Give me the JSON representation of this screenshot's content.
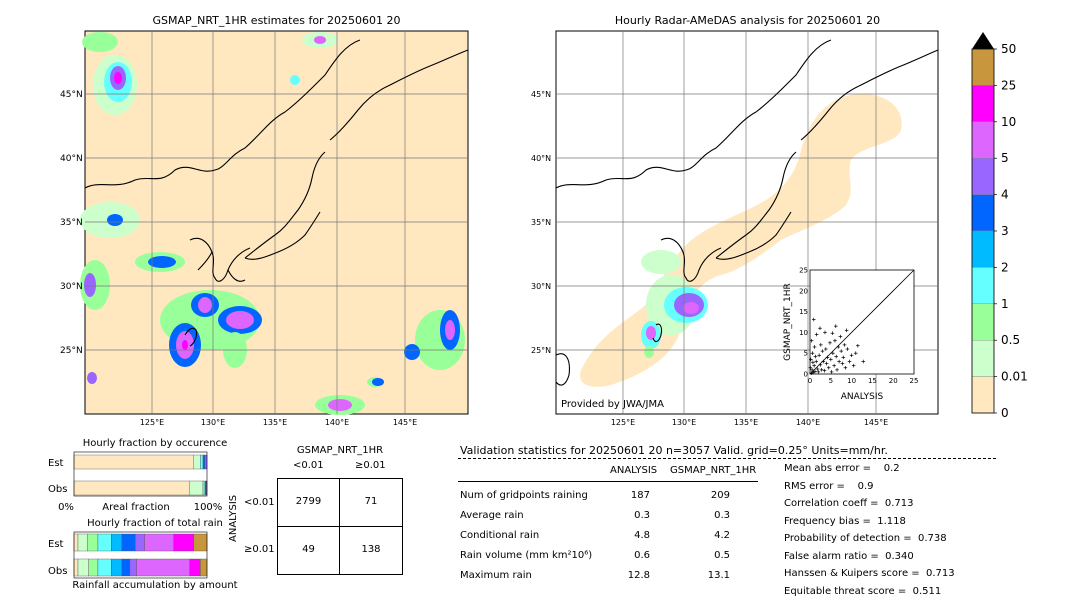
{
  "left_map": {
    "title": "GSMAP_NRT_1HR estimates for 20250601 20",
    "lat_labels": [
      "45°N",
      "40°N",
      "35°N",
      "30°N",
      "25°N"
    ],
    "lon_labels": [
      "125°E",
      "130°E",
      "135°E",
      "140°E",
      "145°E"
    ]
  },
  "right_map": {
    "title": "Hourly Radar-AMeDAS analysis for 20250601 20",
    "lat_labels": [
      "45°N",
      "40°N",
      "35°N",
      "30°N",
      "25°N"
    ],
    "lon_labels": [
      "125°E",
      "130°E",
      "135°E",
      "140°E",
      "145°E"
    ],
    "credit": "Provided by JWA/JMA"
  },
  "colorbar": {
    "labels": [
      "50",
      "25",
      "10",
      "5",
      "4",
      "3",
      "2",
      "1",
      "0.5",
      "0.01",
      "0"
    ],
    "colors": [
      "#c8963c",
      "#ff00ff",
      "#dd66ff",
      "#9966ff",
      "#0066ff",
      "#00bbff",
      "#66ffff",
      "#99ff99",
      "#ccffcc",
      "#ffe8c0"
    ]
  },
  "scatter": {
    "ylabel": "GSMAP_NRT_1HR",
    "xlabel": "ANALYSIS",
    "ticks": [
      "0",
      "5",
      "10",
      "15",
      "20",
      "25"
    ]
  },
  "occurrence": {
    "title": "Hourly fraction by occurence",
    "rows": [
      "Est",
      "Obs"
    ],
    "axis": [
      "0%",
      "Areal fraction",
      "100%"
    ]
  },
  "total_rain": {
    "title": "Hourly fraction of total rain",
    "rows": [
      "Est",
      "Obs"
    ],
    "footer": "Rainfall accumulation by amount"
  },
  "contingency": {
    "title": "GSMAP_NRT_1HR",
    "col_labels": [
      "<0.01",
      "≥0.01"
    ],
    "row_axis": "ANALYSIS",
    "row_labels": [
      "<0.01",
      "≥0.01"
    ],
    "cells": [
      [
        "2799",
        "71"
      ],
      [
        "49",
        "138"
      ]
    ]
  },
  "validation": {
    "header": "Validation statistics for 20250601 20  n=3057 Valid. grid=0.25° Units=mm/hr.",
    "col_analysis": "ANALYSIS",
    "col_gsmap": "GSMAP_NRT_1HR",
    "rows": [
      {
        "label": "Num of gridpoints raining",
        "analysis": "187",
        "gsmap": "209"
      },
      {
        "label": "Average rain",
        "analysis": "0.3",
        "gsmap": "0.3"
      },
      {
        "label": "Conditional rain",
        "analysis": "4.8",
        "gsmap": "4.2"
      },
      {
        "label": "Rain volume (mm km²10⁶)",
        "analysis": "0.6",
        "gsmap": "0.5"
      },
      {
        "label": "Maximum rain",
        "analysis": "12.8",
        "gsmap": "13.1"
      }
    ],
    "scores": [
      "Mean abs error =    0.2",
      "RMS error =    0.9",
      "Correlation coeff =  0.713",
      "Frequency bias =  1.118",
      "Probability of detection =  0.738",
      "False alarm ratio =  0.340",
      "Hanssen & Kuipers score =  0.713",
      "Equitable threat score =  0.511"
    ]
  },
  "chart_data": [
    {
      "type": "scatter",
      "xlabel": "ANALYSIS",
      "ylabel": "GSMAP_NRT_1HR",
      "xlim": [
        0,
        25
      ],
      "ylim": [
        0,
        25
      ],
      "points": [
        [
          0.3,
          0.2
        ],
        [
          0.5,
          1.0
        ],
        [
          0.8,
          0.4
        ],
        [
          1.0,
          2.0
        ],
        [
          1.2,
          0.6
        ],
        [
          1.5,
          3.0
        ],
        [
          1.8,
          1.2
        ],
        [
          2.0,
          0.5
        ],
        [
          2.2,
          4.5
        ],
        [
          2.5,
          2.2
        ],
        [
          2.8,
          1.0
        ],
        [
          3.0,
          5.5
        ],
        [
          3.2,
          3.0
        ],
        [
          3.5,
          0.8
        ],
        [
          3.8,
          6.0
        ],
        [
          4.0,
          2.5
        ],
        [
          4.2,
          4.0
        ],
        [
          4.5,
          1.5
        ],
        [
          4.8,
          7.5
        ],
        [
          5.0,
          3.5
        ],
        [
          5.2,
          0.5
        ],
        [
          5.5,
          5.0
        ],
        [
          5.8,
          2.0
        ],
        [
          6.0,
          8.0
        ],
        [
          6.3,
          4.2
        ],
        [
          6.5,
          1.0
        ],
        [
          6.8,
          6.5
        ],
        [
          7.0,
          3.0
        ],
        [
          7.3,
          9.0
        ],
        [
          7.5,
          5.5
        ],
        [
          7.8,
          2.5
        ],
        [
          8.0,
          4.0
        ],
        [
          8.3,
          7.0
        ],
        [
          8.5,
          1.5
        ],
        [
          8.8,
          10.5
        ],
        [
          9.0,
          6.0
        ],
        [
          9.5,
          3.0
        ],
        [
          10.0,
          4.5
        ],
        [
          10.5,
          2.0
        ],
        [
          11.0,
          5.0
        ],
        [
          0.2,
          3.5
        ],
        [
          0.6,
          5.0
        ],
        [
          1.1,
          6.5
        ],
        [
          0.4,
          8.0
        ],
        [
          1.6,
          9.5
        ],
        [
          2.4,
          11.0
        ],
        [
          0.9,
          13.1
        ],
        [
          3.6,
          10.0
        ],
        [
          0.1,
          1.5
        ],
        [
          0.7,
          2.8
        ],
        [
          1.3,
          4.2
        ],
        [
          2.6,
          7.0
        ],
        [
          12.8,
          3.0
        ],
        [
          11.5,
          6.8
        ],
        [
          6.2,
          11.5
        ],
        [
          5.4,
          9.8
        ]
      ]
    },
    {
      "type": "bar",
      "title": "Hourly fraction by occurence",
      "categories": [
        "Est",
        "Obs"
      ],
      "xlabel": "Areal fraction",
      "series": [
        {
          "values": [
            0.9,
            0.87
          ]
        },
        {
          "values": [
            0.05,
            0.1
          ]
        },
        {
          "values": [
            0.02,
            0.015
          ]
        },
        {
          "values": [
            0.015,
            0.01
          ]
        },
        {
          "values": [
            0.015,
            0.005
          ]
        }
      ]
    },
    {
      "type": "bar",
      "title": "Hourly fraction of total rain",
      "categories": [
        "Est",
        "Obs"
      ],
      "xlabel": "Rainfall accumulation by amount",
      "series": [
        {
          "values": [
            0.03,
            0.03
          ]
        },
        {
          "values": [
            0.07,
            0.08
          ]
        },
        {
          "values": [
            0.08,
            0.07
          ]
        },
        {
          "values": [
            0.1,
            0.1
          ]
        },
        {
          "values": [
            0.08,
            0.08
          ]
        },
        {
          "values": [
            0.1,
            0.06
          ]
        },
        {
          "values": [
            0.07,
            0.05
          ]
        },
        {
          "values": [
            0.22,
            0.4
          ]
        },
        {
          "values": [
            0.15,
            0.08
          ]
        },
        {
          "values": [
            0.1,
            0.05
          ]
        }
      ]
    }
  ]
}
